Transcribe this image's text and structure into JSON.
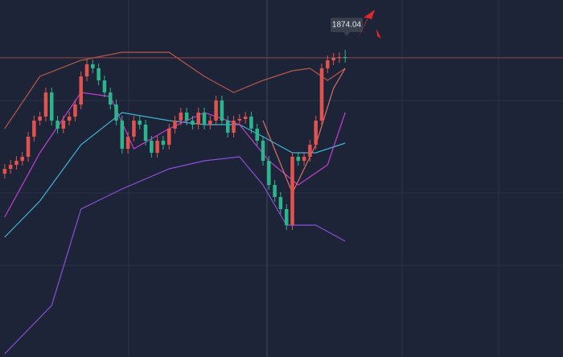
{
  "chart_data": {
    "type": "candlestick",
    "ylim": [
      1782,
      1892
    ],
    "xlim": [
      -0.8,
      95.1
    ],
    "up_color": "#e0534f",
    "down_color": "#2cb58d",
    "last_price": 1874.04,
    "open": [
      1838,
      1839.5,
      1840.75,
      1842,
      1843.25,
      1849.5,
      1854.5,
      1855.75,
      1863.25,
      1854.5,
      1852,
      1854.5,
      1855.75,
      1859.5,
      1868.25,
      1872,
      1870.75,
      1867,
      1863.25,
      1859.5,
      1854.5,
      1845.75,
      1849.5,
      1854.5,
      1853.25,
      1848.25,
      1844.5,
      1848.25,
      1847,
      1852,
      1854.5,
      1857,
      1854.5,
      1853.25,
      1857,
      1853.25,
      1854.5,
      1860.75,
      1854.5,
      1850.75,
      1854.5,
      1855,
      1855.75,
      1852,
      1848.25,
      1842,
      1834.5,
      1830.75,
      1827,
      1822,
      1843.25,
      1842,
      1843.25,
      1847,
      1854.5,
      1870.75,
      1873.25,
      1874,
      1874.25
    ],
    "high": [
      1841,
      1842.25,
      1843.5,
      1844.75,
      1851,
      1856,
      1857.25,
      1864.75,
      1864.75,
      1856,
      1856,
      1857.25,
      1861,
      1869.75,
      1873.5,
      1873.5,
      1872.25,
      1868.5,
      1864.75,
      1861,
      1856,
      1851,
      1856,
      1856,
      1854.75,
      1849.75,
      1849.75,
      1849.75,
      1853.5,
      1856,
      1858.5,
      1858.5,
      1856,
      1858.5,
      1858.5,
      1856,
      1862.25,
      1862.25,
      1856,
      1856,
      1856.5,
      1857.25,
      1857.25,
      1853.5,
      1849.75,
      1843.5,
      1836,
      1832.25,
      1828.5,
      1844.75,
      1844.75,
      1844.75,
      1848.5,
      1856,
      1872.25,
      1874.75,
      1875.5,
      1875.75,
      1876.5
    ],
    "low": [
      1836.5,
      1838,
      1839.25,
      1840.5,
      1841.75,
      1848,
      1853,
      1854.25,
      1853,
      1850.5,
      1850.5,
      1853,
      1854.25,
      1858,
      1866.75,
      1869.25,
      1865.5,
      1861.75,
      1858,
      1853,
      1844.25,
      1844.25,
      1848,
      1851.75,
      1846.75,
      1843,
      1843,
      1845.5,
      1845.5,
      1850.5,
      1853,
      1853,
      1851.75,
      1851.75,
      1851.75,
      1851.75,
      1853,
      1853,
      1849.25,
      1849.25,
      1853,
      1853.5,
      1850.5,
      1846.75,
      1840.5,
      1833,
      1829.25,
      1825.5,
      1820.5,
      1820.5,
      1840.5,
      1840.5,
      1841.75,
      1845.5,
      1853,
      1869.25,
      1871.75,
      1872.5,
      1872.5
    ],
    "close": [
      1839.5,
      1840.75,
      1842,
      1843.25,
      1849.5,
      1854.5,
      1855.75,
      1863.25,
      1854.5,
      1852,
      1854.5,
      1855.75,
      1859.5,
      1868.25,
      1872,
      1870.75,
      1867,
      1863.25,
      1859.5,
      1854.5,
      1845.75,
      1849.5,
      1854.5,
      1853.25,
      1848.25,
      1844.5,
      1848.25,
      1847,
      1852,
      1854.5,
      1857,
      1854.5,
      1853.25,
      1857,
      1853.25,
      1854.5,
      1860.75,
      1854.5,
      1850.75,
      1854.5,
      1855,
      1855.75,
      1852,
      1848.25,
      1842,
      1834.5,
      1830.75,
      1827,
      1822,
      1843.25,
      1842,
      1843.25,
      1847,
      1854.5,
      1870.75,
      1873.25,
      1874,
      1874.25,
      1874.04
    ],
    "overlays": [
      {
        "color": "#b8584a",
        "x": [
          0,
          6,
          13,
          20,
          28,
          34,
          39,
          44,
          49,
          52,
          55,
          58
        ],
        "values": [
          1852,
          1868.25,
          1873.25,
          1875.75,
          1875.75,
          1868.25,
          1863.25,
          1867,
          1870,
          1870.75,
          1867,
          1870.75
        ]
      },
      {
        "color": "#8a4fd8",
        "x": [
          0,
          8,
          13,
          20,
          28,
          34,
          40,
          44,
          48,
          53,
          58
        ],
        "values": [
          1782,
          1797,
          1827,
          1833.25,
          1839.5,
          1842,
          1843.25,
          1834.5,
          1822,
          1822,
          1817
        ]
      },
      {
        "color": "#3fb4d4",
        "x": [
          0,
          6,
          13,
          20,
          28,
          34,
          40,
          44,
          49,
          53,
          58
        ],
        "values": [
          1818.25,
          1829.5,
          1847,
          1857,
          1854.5,
          1853.25,
          1853.25,
          1849.5,
          1844.5,
          1844.5,
          1847.5
        ]
      },
      {
        "color": "#c23fd0",
        "x": [
          0,
          6,
          13,
          18,
          22,
          28,
          34,
          40,
          45,
          50,
          55,
          58
        ],
        "values": [
          1824.5,
          1844.5,
          1863.25,
          1862,
          1845.75,
          1852,
          1857,
          1853.25,
          1842,
          1834.5,
          1840.75,
          1857
        ]
      },
      {
        "color": "#d8706a",
        "x": [
          44,
          49,
          53,
          56,
          58
        ],
        "values": [
          1854.5,
          1832,
          1847,
          1864.5,
          1870.75
        ]
      }
    ]
  }
}
